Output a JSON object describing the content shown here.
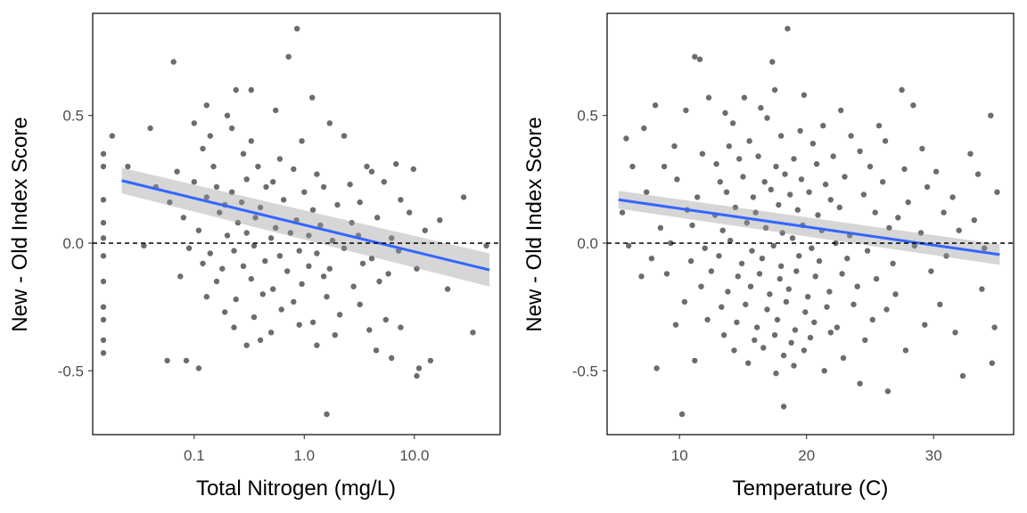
{
  "chart_data": [
    {
      "type": "scatter",
      "xlabel": "Total Nitrogen (mg/L)",
      "ylabel": "New - Old Index Score",
      "x_scale": "log10",
      "xlim": [
        0.012,
        60
      ],
      "ylim": [
        -0.75,
        0.9
      ],
      "x_ticks": [
        0.1,
        1.0,
        10.0
      ],
      "x_tick_labels": [
        "0.1",
        "1.0",
        "10.0"
      ],
      "y_ticks": [
        -0.5,
        0.0,
        0.5
      ],
      "y_tick_labels": [
        "-0.5",
        "0.0",
        "0.5"
      ],
      "reference_line_y": 0,
      "grid": false,
      "trend": {
        "x": [
          0.022,
          48
        ],
        "y": [
          0.245,
          -0.105
        ],
        "ci_halfwidth": [
          0.05,
          0.065
        ],
        "color": "#3366ff"
      },
      "point_color": "#333333",
      "points": [
        [
          0.86,
          0.84
        ],
        [
          0.72,
          0.73
        ],
        [
          0.065,
          0.71
        ],
        [
          1.6,
          -0.67
        ],
        [
          0.24,
          0.6
        ],
        [
          0.33,
          0.6
        ],
        [
          0.13,
          0.54
        ],
        [
          1.18,
          0.57
        ],
        [
          0.04,
          0.45
        ],
        [
          0.2,
          0.5
        ],
        [
          0.1,
          0.47
        ],
        [
          0.55,
          0.52
        ],
        [
          0.22,
          0.45
        ],
        [
          1.7,
          0.47
        ],
        [
          0.018,
          0.42
        ],
        [
          0.015,
          0.35
        ],
        [
          0.14,
          0.42
        ],
        [
          0.33,
          0.4
        ],
        [
          0.95,
          0.4
        ],
        [
          2.3,
          0.42
        ],
        [
          0.12,
          0.37
        ],
        [
          0.28,
          0.35
        ],
        [
          0.6,
          0.33
        ],
        [
          0.015,
          0.3
        ],
        [
          0.025,
          0.3
        ],
        [
          0.07,
          0.28
        ],
        [
          0.15,
          0.3
        ],
        [
          0.38,
          0.3
        ],
        [
          0.8,
          0.29
        ],
        [
          1.3,
          0.27
        ],
        [
          3.7,
          0.3
        ],
        [
          4.1,
          0.28
        ],
        [
          6.8,
          0.31
        ],
        [
          9.8,
          0.29
        ],
        [
          0.045,
          0.22
        ],
        [
          0.1,
          0.24
        ],
        [
          0.16,
          0.22
        ],
        [
          0.22,
          0.2
        ],
        [
          0.3,
          0.25
        ],
        [
          0.45,
          0.22
        ],
        [
          0.52,
          0.24
        ],
        [
          1.0,
          0.2
        ],
        [
          1.5,
          0.22
        ],
        [
          2.6,
          0.23
        ],
        [
          5.3,
          0.24
        ],
        [
          0.015,
          0.17
        ],
        [
          0.06,
          0.16
        ],
        [
          0.13,
          0.18
        ],
        [
          0.19,
          0.15
        ],
        [
          0.27,
          0.16
        ],
        [
          0.4,
          0.14
        ],
        [
          0.65,
          0.17
        ],
        [
          1.2,
          0.13
        ],
        [
          2.0,
          0.15
        ],
        [
          3.2,
          0.16
        ],
        [
          7.5,
          0.17
        ],
        [
          28,
          0.18
        ],
        [
          0.08,
          0.1
        ],
        [
          0.17,
          0.12
        ],
        [
          0.25,
          0.08
        ],
        [
          0.36,
          0.1
        ],
        [
          0.55,
          0.06
        ],
        [
          0.85,
          0.09
        ],
        [
          1.4,
          0.07
        ],
        [
          2.7,
          0.08
        ],
        [
          4.6,
          0.1
        ],
        [
          9.0,
          0.12
        ],
        [
          17,
          0.09
        ],
        [
          0.015,
          0.08
        ],
        [
          0.11,
          0.05
        ],
        [
          0.2,
          0.03
        ],
        [
          0.3,
          0.04
        ],
        [
          0.5,
          0.02
        ],
        [
          0.75,
          0.04
        ],
        [
          1.1,
          0.03
        ],
        [
          1.8,
          0.01
        ],
        [
          3.1,
          0.03
        ],
        [
          6.2,
          0.02
        ],
        [
          12.5,
          0.05
        ],
        [
          0.015,
          0.02
        ],
        [
          0.035,
          -0.01
        ],
        [
          0.09,
          -0.02
        ],
        [
          0.14,
          -0.04
        ],
        [
          0.23,
          -0.03
        ],
        [
          0.35,
          -0.01
        ],
        [
          0.6,
          -0.05
        ],
        [
          0.9,
          -0.03
        ],
        [
          1.3,
          -0.04
        ],
        [
          2.3,
          -0.02
        ],
        [
          4.1,
          -0.06
        ],
        [
          7.2,
          -0.03
        ],
        [
          45,
          -0.01
        ],
        [
          0.015,
          -0.05
        ],
        [
          0.12,
          -0.08
        ],
        [
          0.18,
          -0.1
        ],
        [
          0.28,
          -0.09
        ],
        [
          0.44,
          -0.07
        ],
        [
          0.7,
          -0.11
        ],
        [
          1.1,
          -0.09
        ],
        [
          1.7,
          -0.1
        ],
        [
          3.4,
          -0.08
        ],
        [
          5.8,
          -0.12
        ],
        [
          10.5,
          -0.1
        ],
        [
          0.075,
          -0.13
        ],
        [
          0.16,
          -0.15
        ],
        [
          0.33,
          -0.14
        ],
        [
          0.52,
          -0.18
        ],
        [
          0.95,
          -0.16
        ],
        [
          1.5,
          -0.13
        ],
        [
          2.8,
          -0.17
        ],
        [
          4.8,
          -0.15
        ],
        [
          0.015,
          -0.15
        ],
        [
          0.13,
          -0.21
        ],
        [
          0.24,
          -0.22
        ],
        [
          0.42,
          -0.2
        ],
        [
          0.8,
          -0.23
        ],
        [
          1.6,
          -0.21
        ],
        [
          3.2,
          -0.24
        ],
        [
          0.015,
          -0.25
        ],
        [
          0.19,
          -0.27
        ],
        [
          0.35,
          -0.29
        ],
        [
          0.62,
          -0.26
        ],
        [
          1.2,
          -0.31
        ],
        [
          2.1,
          -0.28
        ],
        [
          5.5,
          -0.3
        ],
        [
          20,
          -0.18
        ],
        [
          0.015,
          -0.3
        ],
        [
          0.23,
          -0.33
        ],
        [
          0.5,
          -0.35
        ],
        [
          0.9,
          -0.32
        ],
        [
          1.9,
          -0.36
        ],
        [
          3.9,
          -0.34
        ],
        [
          7.5,
          -0.33
        ],
        [
          34,
          -0.35
        ],
        [
          0.015,
          -0.38
        ],
        [
          0.3,
          -0.4
        ],
        [
          0.4,
          -0.38
        ],
        [
          1.3,
          -0.4
        ],
        [
          4.5,
          -0.42
        ],
        [
          0.057,
          -0.46
        ],
        [
          0.085,
          -0.46
        ],
        [
          0.11,
          -0.49
        ],
        [
          6.2,
          -0.45
        ],
        [
          14,
          -0.46
        ],
        [
          11,
          -0.49
        ],
        [
          0.015,
          -0.43
        ],
        [
          10.5,
          -0.52
        ]
      ]
    },
    {
      "type": "scatter",
      "xlabel": "Temperature (C)",
      "ylabel": "New - Old Index Score",
      "xlim": [
        4.3,
        36.3
      ],
      "ylim": [
        -0.75,
        0.9
      ],
      "x_ticks": [
        10,
        20,
        30
      ],
      "x_tick_labels": [
        "10",
        "20",
        "30"
      ],
      "y_ticks": [
        -0.5,
        0.0,
        0.5
      ],
      "y_tick_labels": [
        "-0.5",
        "0.0",
        "0.5"
      ],
      "reference_line_y": 0,
      "grid": false,
      "trend": {
        "x": [
          5.2,
          35.2
        ],
        "y": [
          0.17,
          -0.045
        ],
        "ci_halfwidth": [
          0.035,
          0.04
        ],
        "color": "#3366ff"
      },
      "point_color": "#333333",
      "points": [
        [
          18.5,
          0.84
        ],
        [
          11.2,
          0.73
        ],
        [
          11.6,
          0.72
        ],
        [
          17.3,
          0.71
        ],
        [
          10.2,
          -0.67
        ],
        [
          18.2,
          -0.64
        ],
        [
          17.5,
          0.6
        ],
        [
          19.8,
          0.58
        ],
        [
          27.5,
          0.6
        ],
        [
          12.3,
          0.57
        ],
        [
          15.1,
          0.57
        ],
        [
          28.4,
          0.54
        ],
        [
          34.5,
          0.5
        ],
        [
          8.1,
          0.54
        ],
        [
          10.5,
          0.52
        ],
        [
          13.6,
          0.51
        ],
        [
          16.4,
          0.53
        ],
        [
          22.7,
          0.52
        ],
        [
          25.7,
          0.46
        ],
        [
          7.2,
          0.45
        ],
        [
          9.6,
          0.38
        ],
        [
          14.2,
          0.47
        ],
        [
          16.9,
          0.49
        ],
        [
          19.5,
          0.44
        ],
        [
          21.3,
          0.46
        ],
        [
          23.5,
          0.42
        ],
        [
          26.2,
          0.4
        ],
        [
          29.1,
          0.37
        ],
        [
          5.8,
          0.41
        ],
        [
          11.8,
          0.35
        ],
        [
          13.9,
          0.38
        ],
        [
          15.5,
          0.4
        ],
        [
          18.0,
          0.42
        ],
        [
          20.5,
          0.39
        ],
        [
          24.2,
          0.36
        ],
        [
          32.9,
          0.35
        ],
        [
          6.3,
          0.3
        ],
        [
          8.8,
          0.3
        ],
        [
          12.9,
          0.31
        ],
        [
          14.7,
          0.33
        ],
        [
          16.2,
          0.34
        ],
        [
          17.6,
          0.3
        ],
        [
          19.0,
          0.33
        ],
        [
          20.8,
          0.31
        ],
        [
          22.1,
          0.34
        ],
        [
          25.0,
          0.3
        ],
        [
          27.7,
          0.29
        ],
        [
          30.2,
          0.28
        ],
        [
          33.5,
          0.27
        ],
        [
          9.8,
          0.25
        ],
        [
          13.2,
          0.24
        ],
        [
          15.0,
          0.26
        ],
        [
          16.7,
          0.24
        ],
        [
          18.3,
          0.27
        ],
        [
          19.6,
          0.25
        ],
        [
          21.5,
          0.23
        ],
        [
          23.0,
          0.26
        ],
        [
          26.0,
          0.24
        ],
        [
          29.5,
          0.22
        ],
        [
          7.4,
          0.2
        ],
        [
          11.4,
          0.18
        ],
        [
          13.7,
          0.2
        ],
        [
          15.8,
          0.18
        ],
        [
          17.2,
          0.21
        ],
        [
          18.7,
          0.19
        ],
        [
          20.2,
          0.2
        ],
        [
          21.9,
          0.17
        ],
        [
          24.5,
          0.19
        ],
        [
          28.0,
          0.16
        ],
        [
          31.5,
          0.18
        ],
        [
          35.0,
          0.2
        ],
        [
          5.5,
          0.12
        ],
        [
          10.6,
          0.13
        ],
        [
          12.8,
          0.11
        ],
        [
          14.4,
          0.14
        ],
        [
          16.0,
          0.12
        ],
        [
          17.8,
          0.15
        ],
        [
          19.3,
          0.13
        ],
        [
          20.9,
          0.11
        ],
        [
          22.6,
          0.14
        ],
        [
          25.4,
          0.12
        ],
        [
          27.2,
          0.1
        ],
        [
          30.8,
          0.12
        ],
        [
          33.2,
          0.09
        ],
        [
          8.5,
          0.06
        ],
        [
          11.0,
          0.07
        ],
        [
          13.4,
          0.05
        ],
        [
          15.3,
          0.08
        ],
        [
          16.8,
          0.06
        ],
        [
          18.1,
          0.04
        ],
        [
          19.7,
          0.07
        ],
        [
          21.2,
          0.05
        ],
        [
          23.4,
          0.03
        ],
        [
          26.5,
          0.06
        ],
        [
          29.0,
          0.04
        ],
        [
          32.0,
          0.05
        ],
        [
          6.0,
          -0.01
        ],
        [
          9.3,
          0.0
        ],
        [
          12.0,
          -0.02
        ],
        [
          14.0,
          0.01
        ],
        [
          15.7,
          -0.03
        ],
        [
          17.4,
          -0.01
        ],
        [
          18.9,
          0.02
        ],
        [
          20.4,
          -0.02
        ],
        [
          22.3,
          0.0
        ],
        [
          24.8,
          -0.03
        ],
        [
          28.5,
          -0.01
        ],
        [
          34.0,
          -0.02
        ],
        [
          7.8,
          -0.06
        ],
        [
          10.9,
          -0.07
        ],
        [
          13.1,
          -0.05
        ],
        [
          14.9,
          -0.08
        ],
        [
          16.5,
          -0.06
        ],
        [
          18.0,
          -0.09
        ],
        [
          19.4,
          -0.05
        ],
        [
          21.0,
          -0.07
        ],
        [
          23.2,
          -0.06
        ],
        [
          26.8,
          -0.08
        ],
        [
          31.0,
          -0.05
        ],
        [
          9.0,
          -0.12
        ],
        [
          12.5,
          -0.11
        ],
        [
          14.6,
          -0.13
        ],
        [
          16.3,
          -0.12
        ],
        [
          17.9,
          -0.14
        ],
        [
          19.2,
          -0.11
        ],
        [
          20.7,
          -0.13
        ],
        [
          22.8,
          -0.12
        ],
        [
          25.5,
          -0.14
        ],
        [
          29.8,
          -0.11
        ],
        [
          7.0,
          -0.13
        ],
        [
          11.7,
          -0.17
        ],
        [
          13.8,
          -0.19
        ],
        [
          15.6,
          -0.17
        ],
        [
          17.1,
          -0.2
        ],
        [
          18.6,
          -0.18
        ],
        [
          20.1,
          -0.21
        ],
        [
          21.8,
          -0.19
        ],
        [
          24.0,
          -0.17
        ],
        [
          27.0,
          -0.2
        ],
        [
          33.8,
          -0.18
        ],
        [
          10.4,
          -0.23
        ],
        [
          13.3,
          -0.25
        ],
        [
          15.2,
          -0.24
        ],
        [
          16.9,
          -0.26
        ],
        [
          18.4,
          -0.23
        ],
        [
          19.9,
          -0.27
        ],
        [
          21.6,
          -0.25
        ],
        [
          23.7,
          -0.24
        ],
        [
          26.3,
          -0.26
        ],
        [
          30.5,
          -0.24
        ],
        [
          12.2,
          -0.3
        ],
        [
          14.5,
          -0.31
        ],
        [
          16.1,
          -0.33
        ],
        [
          17.7,
          -0.3
        ],
        [
          19.1,
          -0.34
        ],
        [
          20.6,
          -0.31
        ],
        [
          22.4,
          -0.33
        ],
        [
          25.2,
          -0.3
        ],
        [
          29.3,
          -0.32
        ],
        [
          34.8,
          -0.33
        ],
        [
          9.7,
          -0.32
        ],
        [
          13.5,
          -0.36
        ],
        [
          15.9,
          -0.38
        ],
        [
          17.5,
          -0.36
        ],
        [
          18.8,
          -0.39
        ],
        [
          20.3,
          -0.37
        ],
        [
          21.9,
          -0.35
        ],
        [
          24.6,
          -0.38
        ],
        [
          31.7,
          -0.35
        ],
        [
          11.2,
          -0.46
        ],
        [
          14.3,
          -0.42
        ],
        [
          16.6,
          -0.41
        ],
        [
          18.2,
          -0.44
        ],
        [
          19.8,
          -0.42
        ],
        [
          22.9,
          -0.45
        ],
        [
          27.8,
          -0.42
        ],
        [
          8.2,
          -0.49
        ],
        [
          15.4,
          -0.47
        ],
        [
          17.6,
          -0.51
        ],
        [
          19.0,
          -0.48
        ],
        [
          21.4,
          -0.5
        ],
        [
          26.4,
          -0.58
        ],
        [
          32.3,
          -0.52
        ],
        [
          34.6,
          -0.47
        ],
        [
          24.2,
          -0.55
        ]
      ]
    }
  ]
}
